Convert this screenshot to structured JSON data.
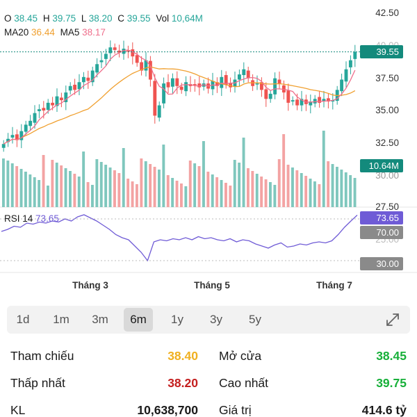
{
  "header": {
    "open_label": "O",
    "open_value": "38.45",
    "high_label": "H",
    "high_value": "39.75",
    "low_label": "L",
    "low_value": "38.20",
    "close_label": "C",
    "close_value": "39.55",
    "vol_label": "Vol",
    "vol_value": "10,64M",
    "ma20_label": "MA20",
    "ma20_value": "36.44",
    "ma5_label": "MA5",
    "ma5_value": "38.17"
  },
  "tags": {
    "price": "39.55",
    "volume": "10.64M",
    "rsi": "73.65",
    "rsi_70": "70.00",
    "rsi_30": "30.00"
  },
  "rsi": {
    "label": "RSI 14",
    "value": "73.65"
  },
  "y_axis": [
    "42.50",
    "40.00",
    "37.50",
    "35.00",
    "32.50",
    "30.00",
    "27.50",
    "25.00"
  ],
  "x_axis": [
    "Tháng 3",
    "Tháng 5",
    "Tháng 7"
  ],
  "ranges": [
    "1d",
    "1m",
    "3m",
    "6m",
    "1y",
    "3y",
    "5y"
  ],
  "active_range": "6m",
  "stats": {
    "ref_label": "Tham chiếu",
    "ref_value": "38.40",
    "open_label": "Mở cửa",
    "open_value": "38.45",
    "low_label": "Thấp nhất",
    "low_value": "38.20",
    "high_label": "Cao nhất",
    "high_value": "39.75",
    "vol_label": "KL",
    "vol_value": "10,638,700",
    "value_label": "Giá trị",
    "value_value": "414.6 tỷ"
  },
  "colors": {
    "up": "#26a69a",
    "down": "#ef5350",
    "ma20": "#f0a030",
    "ma5": "#ef6f8c",
    "rsi": "#6f5bd6",
    "vol_up": "#7fc7bd",
    "vol_down": "#f3a3a3"
  },
  "chart_data": {
    "type": "line",
    "ylim": [
      27.5,
      42.5
    ],
    "close_series": [
      32.4,
      32.8,
      33.1,
      32.7,
      33.4,
      33.9,
      34.2,
      34.8,
      35.1,
      35.0,
      35.6,
      35.4,
      36.1,
      35.8,
      36.4,
      36.9,
      36.6,
      37.2,
      37.6,
      37.3,
      38.1,
      38.6,
      38.9,
      39.4,
      39.9,
      39.7,
      39.5,
      39.8,
      39.6,
      39.2,
      38.7,
      38.1,
      38.9,
      37.4,
      34.6,
      35.4,
      37.1,
      36.8,
      37.5,
      36.9,
      36.6,
      37.2,
      36.9,
      37.0,
      36.8,
      37.1,
      36.7,
      37.3,
      36.9,
      37.6,
      37.0,
      36.8,
      37.4,
      37.8,
      38.2,
      37.5,
      36.9,
      37.1,
      36.6,
      35.9,
      36.3,
      37.5,
      37.1,
      36.4,
      35.6,
      35.8,
      35.4,
      35.9,
      35.5,
      35.7,
      35.9,
      35.6,
      35.9,
      35.7,
      35.8,
      36.6,
      37.4,
      38.2,
      38.9,
      39.55
    ],
    "rsi_series": [
      58,
      60,
      63,
      62,
      66,
      65,
      67,
      66,
      68,
      67,
      70,
      68,
      72,
      74,
      71,
      68,
      64,
      60,
      55,
      52,
      50,
      44,
      38,
      30,
      48,
      50,
      49,
      51,
      50,
      52,
      50,
      53,
      51,
      52,
      50,
      49,
      51,
      48,
      50,
      49,
      46,
      44,
      42,
      45,
      47,
      43,
      44,
      46,
      45,
      47,
      48,
      47,
      49,
      55,
      62,
      68,
      73.65
    ]
  }
}
